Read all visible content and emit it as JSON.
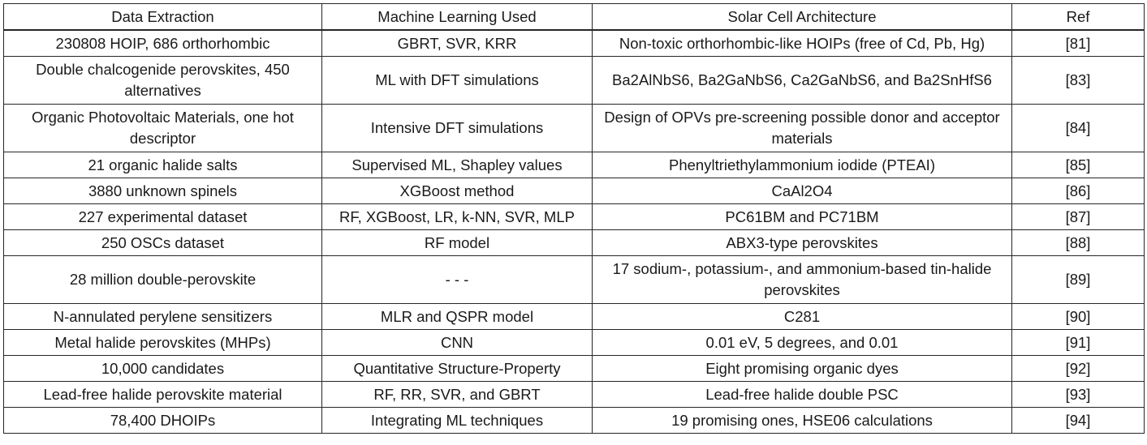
{
  "table": {
    "headers": [
      "Data Extraction",
      "Machine Learning Used",
      "Solar Cell Architecture",
      "Ref"
    ],
    "rows": [
      [
        "230808 HOIP, 686 orthorhombic",
        "GBRT, SVR, KRR",
        "Non-toxic orthorhombic-like HOIPs (free of Cd, Pb, Hg)",
        "[81]"
      ],
      [
        "Double chalcogenide perovskites, 450 alternatives",
        "ML with DFT simulations",
        "Ba2AlNbS6, Ba2GaNbS6, Ca2GaNbS6, and Ba2SnHfS6",
        "[83]"
      ],
      [
        "Organic Photovoltaic Materials, one hot descriptor",
        "Intensive DFT simulations",
        "Design of OPVs pre-screening possible donor and acceptor materials",
        "[84]"
      ],
      [
        "21 organic halide salts",
        "Supervised ML, Shapley values",
        "Phenyltriethylammonium iodide (PTEAI)",
        "[85]"
      ],
      [
        "3880 unknown spinels",
        "XGBoost method",
        "CaAl2O4",
        "[86]"
      ],
      [
        "227 experimental dataset",
        "RF, XGBoost, LR, k-NN, SVR, MLP",
        "PC61BM and PC71BM",
        "[87]"
      ],
      [
        "250 OSCs dataset",
        "RF model",
        "ABX3-type perovskites",
        "[88]"
      ],
      [
        "28 million double-perovskite",
        "- - -",
        "17 sodium-, potassium-, and ammonium-based tin-halide perovskites",
        "[89]"
      ],
      [
        "N-annulated perylene sensitizers",
        "MLR and QSPR model",
        "C281",
        "[90]"
      ],
      [
        "Metal halide perovskites (MHPs)",
        "CNN",
        "0.01 eV, 5 degrees, and 0.01",
        "[91]"
      ],
      [
        "10,000 candidates",
        "Quantitative Structure-Property",
        "Eight promising organic dyes",
        "[92]"
      ],
      [
        "Lead-free halide perovskite material",
        "RF, RR, SVR, and GBRT",
        "Lead-free halide double PSC",
        "[93]"
      ],
      [
        "78,400 DHOIPs",
        "Integrating ML techniques",
        "19 promising ones, HSE06 calculations",
        "[94]"
      ]
    ]
  }
}
